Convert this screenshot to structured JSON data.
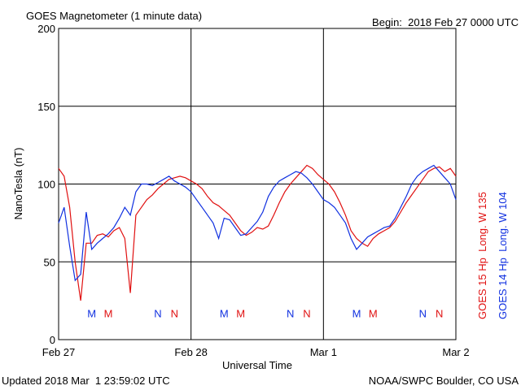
{
  "chart_data": {
    "type": "line",
    "title": "GOES Magnetometer (1 minute data)",
    "subtitle": "Begin:  2018 Feb 27 0000 UTC",
    "y_label": "NanoTesla (nT)",
    "x_label": "Universal Time",
    "footer_left": "Updated 2018 Mar  1 23:59:02 UTC",
    "footer_right": "NOAA/SWPC Boulder, CO USA",
    "x": [
      0,
      1,
      2,
      3,
      4,
      5,
      6,
      7,
      8,
      9,
      10,
      11,
      12,
      13,
      14,
      15,
      16,
      17,
      18,
      19,
      20,
      21,
      22,
      23,
      24,
      25,
      26,
      27,
      28,
      29,
      30,
      31,
      32,
      33,
      34,
      35,
      36,
      37,
      38,
      39,
      40,
      41,
      42,
      43,
      44,
      45,
      46,
      47,
      48,
      49,
      50,
      51,
      52,
      53,
      54,
      55,
      56,
      57,
      58,
      59,
      60,
      61,
      62,
      63,
      64,
      65,
      66,
      67,
      68,
      69,
      70,
      71,
      72
    ],
    "series": [
      {
        "name": "GOES 15 Hp  Long. W 135",
        "color": "#e01010",
        "values": [
          110,
          105,
          85,
          50,
          25,
          62,
          62,
          67,
          68,
          66,
          70,
          72,
          65,
          30,
          80,
          85,
          90,
          93,
          97,
          100,
          103,
          104,
          105,
          104,
          102,
          100,
          97,
          92,
          88,
          86,
          83,
          80,
          75,
          70,
          67,
          69,
          72,
          71,
          73,
          80,
          88,
          95,
          100,
          104,
          108,
          112,
          110,
          106,
          103,
          100,
          95,
          88,
          80,
          70,
          65,
          62,
          60,
          65,
          68,
          70,
          72,
          76,
          82,
          88,
          93,
          98,
          103,
          108,
          110,
          111,
          108,
          110,
          105
        ]
      },
      {
        "name": "GOES 14 Hp  Long. W 104",
        "color": "#1030e0",
        "values": [
          75,
          85,
          60,
          38,
          42,
          82,
          58,
          62,
          65,
          68,
          72,
          78,
          85,
          80,
          95,
          100,
          100,
          99,
          101,
          103,
          105,
          102,
          100,
          98,
          95,
          90,
          85,
          80,
          75,
          65,
          78,
          77,
          72,
          67,
          68,
          72,
          76,
          82,
          92,
          98,
          102,
          104,
          106,
          108,
          107,
          104,
          100,
          95,
          90,
          88,
          85,
          80,
          75,
          65,
          58,
          62,
          66,
          68,
          70,
          72,
          73,
          78,
          85,
          92,
          100,
          105,
          108,
          110,
          112,
          108,
          104,
          100,
          90
        ]
      }
    ],
    "annotations": [
      {
        "text": "M",
        "x": 6,
        "y": 17,
        "color": "#1030e0"
      },
      {
        "text": "M",
        "x": 9,
        "y": 17,
        "color": "#e01010"
      },
      {
        "text": "N",
        "x": 18,
        "y": 17,
        "color": "#1030e0"
      },
      {
        "text": "N",
        "x": 21,
        "y": 17,
        "color": "#e01010"
      },
      {
        "text": "M",
        "x": 30,
        "y": 17,
        "color": "#1030e0"
      },
      {
        "text": "M",
        "x": 33,
        "y": 17,
        "color": "#e01010"
      },
      {
        "text": "N",
        "x": 42,
        "y": 17,
        "color": "#1030e0"
      },
      {
        "text": "N",
        "x": 45,
        "y": 17,
        "color": "#e01010"
      },
      {
        "text": "M",
        "x": 54,
        "y": 17,
        "color": "#1030e0"
      },
      {
        "text": "M",
        "x": 57,
        "y": 17,
        "color": "#e01010"
      },
      {
        "text": "N",
        "x": 66,
        "y": 17,
        "color": "#1030e0"
      },
      {
        "text": "N",
        "x": 69,
        "y": 17,
        "color": "#e01010"
      }
    ],
    "xlim": [
      0,
      72
    ],
    "xticks": [
      {
        "value": 0,
        "label": "Feb 27"
      },
      {
        "value": 24,
        "label": "Feb 28"
      },
      {
        "value": 48,
        "label": "Mar 1"
      },
      {
        "value": 72,
        "label": "Mar 2"
      }
    ],
    "ylim": [
      0,
      200
    ],
    "yticks": [
      0,
      50,
      100,
      150,
      200
    ],
    "grid": true
  }
}
